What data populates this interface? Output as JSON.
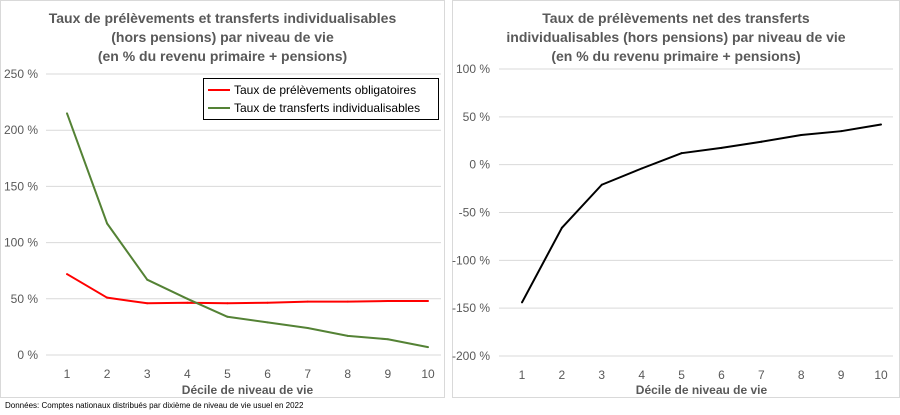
{
  "chart_data": [
    {
      "type": "line",
      "title_lines": [
        "Taux de prélèvements et transferts individualisables",
        "(hors pensions) par niveau de vie",
        "(en % du revenu primaire + pensions)"
      ],
      "xlabel": "Décile de niveau de vie",
      "ylabel": "",
      "x": [
        1,
        2,
        3,
        4,
        5,
        6,
        7,
        8,
        9,
        10
      ],
      "ylim": [
        0,
        250
      ],
      "yticks": [
        0,
        50,
        100,
        150,
        200,
        250
      ],
      "ytick_labels": [
        "0 %",
        "50 %",
        "100 %",
        "150 %",
        "200 %",
        "250 %"
      ],
      "grid": true,
      "legend_position": "top-right",
      "series": [
        {
          "name": "Taux de prélèvements obligatoires",
          "color": "#ff0000",
          "values": [
            72,
            51,
            46,
            46.5,
            46,
            46.5,
            47.5,
            47.5,
            48,
            48
          ]
        },
        {
          "name": "Taux de transferts individualisables",
          "color": "#548235",
          "values": [
            215,
            117,
            67,
            50,
            34,
            29,
            24,
            17,
            14,
            7
          ]
        }
      ]
    },
    {
      "type": "line",
      "title_lines": [
        "Taux de prélèvements net des transferts",
        "individualisables (hors pensions) par niveau de vie",
        "(en % du revenu primaire + pensions)"
      ],
      "xlabel": "Décile de niveau de vie",
      "ylabel": "",
      "x": [
        1,
        2,
        3,
        4,
        5,
        6,
        7,
        8,
        9,
        10
      ],
      "ylim": [
        -200,
        100
      ],
      "yticks": [
        -200,
        -150,
        -100,
        -50,
        0,
        50,
        100
      ],
      "ytick_labels": [
        "-200 %",
        "-150 %",
        "-100 %",
        "-50 %",
        "0 %",
        "50 %",
        "100 %"
      ],
      "grid": true,
      "series": [
        {
          "name": "",
          "color": "#000000",
          "values": [
            -144,
            -66,
            -21,
            -4,
            12,
            17.5,
            24,
            31,
            35,
            42
          ]
        }
      ]
    }
  ],
  "footnote": "Données: Comptes nationaux distribués par dixième de niveau de vie usuel en 2022"
}
